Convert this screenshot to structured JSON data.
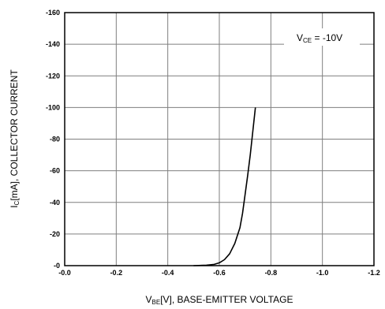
{
  "chart_data": {
    "type": "line",
    "xlabel": {
      "main": "V",
      "sub": "BE",
      "rest": "[V], BASE-EMITTER VOLTAGE"
    },
    "ylabel": {
      "main": "I",
      "sub": "C",
      "rest": "[mA], COLLECTOR CURRENT"
    },
    "xlim": [
      0.0,
      -1.2
    ],
    "ylim": [
      0,
      -160
    ],
    "x_ticks": [
      0.0,
      -0.2,
      -0.4,
      -0.6,
      -0.8,
      -1.0,
      -1.2
    ],
    "x_tick_labels": [
      "-0.0",
      "-0.2",
      "-0.4",
      "-0.6",
      "-0.8",
      "-1.0",
      "-1.2"
    ],
    "y_ticks": [
      0,
      -20,
      -40,
      -60,
      -80,
      -100,
      -120,
      -140,
      -160
    ],
    "y_tick_labels": [
      "-0",
      "-20",
      "-40",
      "-60",
      "-80",
      "-100",
      "-120",
      "-140",
      "-160"
    ],
    "grid": true,
    "annotation": {
      "main": "V",
      "sub": "CE",
      "rest": " = -10V"
    },
    "series": [
      {
        "x": [
          -0.5,
          -0.55,
          -0.58,
          -0.6,
          -0.62,
          -0.64,
          -0.66,
          -0.68,
          -0.69,
          -0.7,
          -0.71,
          -0.72,
          -0.73,
          -0.74
        ],
        "y": [
          0,
          -0.3,
          -0.8,
          -1.8,
          -3.8,
          -7.5,
          -14,
          -24,
          -33,
          -45,
          -57,
          -70,
          -85,
          -100
        ]
      }
    ]
  },
  "colors": {
    "line": "#000000",
    "grid": "#7f7f7f",
    "frame": "#000000"
  }
}
